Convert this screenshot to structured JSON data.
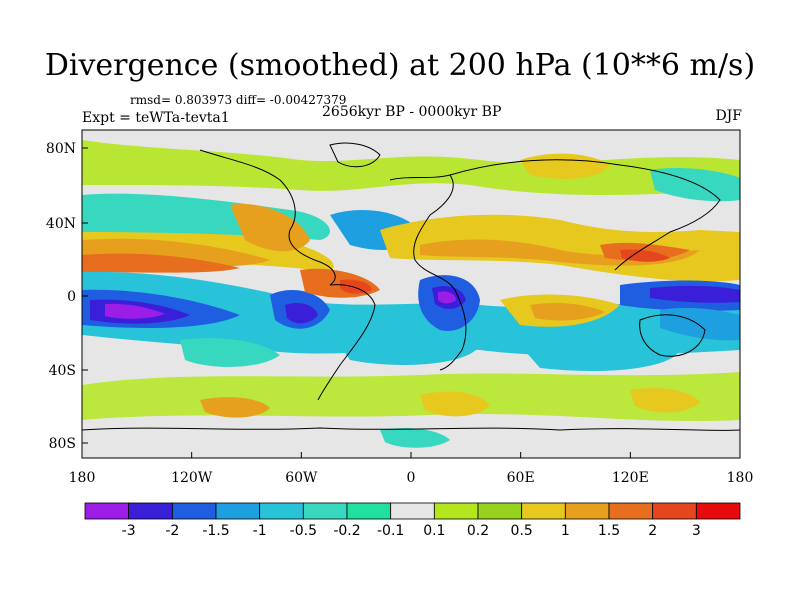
{
  "title": "Divergence (smoothed) at 200 hPa (10**6 m/s)",
  "stats_text": "rmsd= 0.803973 diff= -0.00427379",
  "experiment": "Expt = teWTa-tevta1",
  "period": "2656kyr BP - 0000kyr BP",
  "season": "DJF",
  "lat_labels": [
    "80N",
    "40N",
    "0",
    "40S",
    "80S"
  ],
  "lon_labels": [
    "180",
    "120W",
    "60W",
    "0",
    "60E",
    "120E",
    "180"
  ],
  "colorbar": {
    "labels": [
      "-3",
      "-2",
      "-1.5",
      "-1",
      "-0.5",
      "-0.2",
      "-0.1",
      "0.1",
      "0.2",
      "0.5",
      "1",
      "1.5",
      "2",
      "3"
    ],
    "colors": [
      "#9b1de6",
      "#3a1fd8",
      "#1f5ee0",
      "#1ea0e0",
      "#28c3d8",
      "#38d8c0",
      "#20e0a0",
      "#e6e6e6",
      "#b4e61e",
      "#96d21e",
      "#e6c81e",
      "#e6a01e",
      "#e66e1e",
      "#e6461e",
      "#e60a0a"
    ]
  },
  "legend_colors": {
    "neutral": "#e6e6e6",
    "background": "#ffffff",
    "coast": "#000000"
  }
}
